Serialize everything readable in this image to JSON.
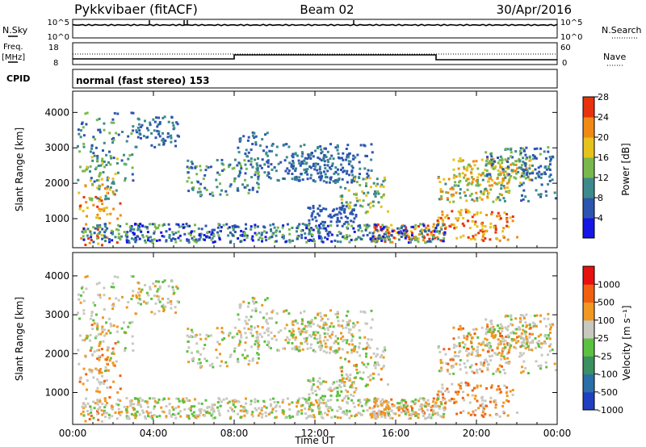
{
  "header": {
    "radar": "Pykkvibaer (fitACF)",
    "beam": "Beam 02",
    "date": "30/Apr/2016"
  },
  "nsky_panel": {
    "left_label": "N.Sky",
    "right_label": "N.Search",
    "left_ticks": [
      "10^5",
      "10^0"
    ],
    "right_ticks": [
      "10^5",
      "10^0"
    ]
  },
  "freq_panel": {
    "left_label_top": "Freq.",
    "left_label_bottom": "[MHz]",
    "left_ticks": [
      "18",
      "8"
    ],
    "right_label": "Nave",
    "right_ticks": [
      "60",
      "0"
    ]
  },
  "cpid": {
    "label": "CPID",
    "value": "normal (fast stereo) 153"
  },
  "chart_data": [
    {
      "type": "heatmap",
      "name": "power",
      "ylabel": "Slant Range [km]",
      "y_ticks": [
        "1000",
        "2000",
        "3000",
        "4000"
      ],
      "ylim": [
        180,
        4600
      ],
      "colorbar_label": "Power [dB]",
      "colorbar_ticks": [
        "4",
        "8",
        "12",
        "16",
        "20",
        "24",
        "28"
      ],
      "colorbar_colors": [
        "#1515e6",
        "#2d55b0",
        "#3c8a8c",
        "#79b84d",
        "#e6c21c",
        "#f08a14",
        "#e8320c"
      ]
    },
    {
      "type": "heatmap",
      "name": "velocity",
      "ylabel": "Slant Range [km]",
      "y_ticks": [
        "1000",
        "2000",
        "3000",
        "4000"
      ],
      "ylim": [
        180,
        4600
      ],
      "colorbar_label": "Velocity [m s⁻¹]",
      "colorbar_ticks": [
        "1000",
        "500",
        "100",
        "25",
        "-25",
        "-100",
        "-500",
        "-1000"
      ],
      "colorbar_colors": [
        "#2040c0",
        "#2a70a8",
        "#3a9060",
        "#5cc040",
        "#c8c8c0",
        "#f09820",
        "#f06010",
        "#e81010"
      ]
    }
  ],
  "x_axis": {
    "label": "Time UT",
    "ticks": [
      "00:00",
      "04:00",
      "08:00",
      "12:00",
      "16:00",
      "20:00",
      "00:00"
    ]
  }
}
